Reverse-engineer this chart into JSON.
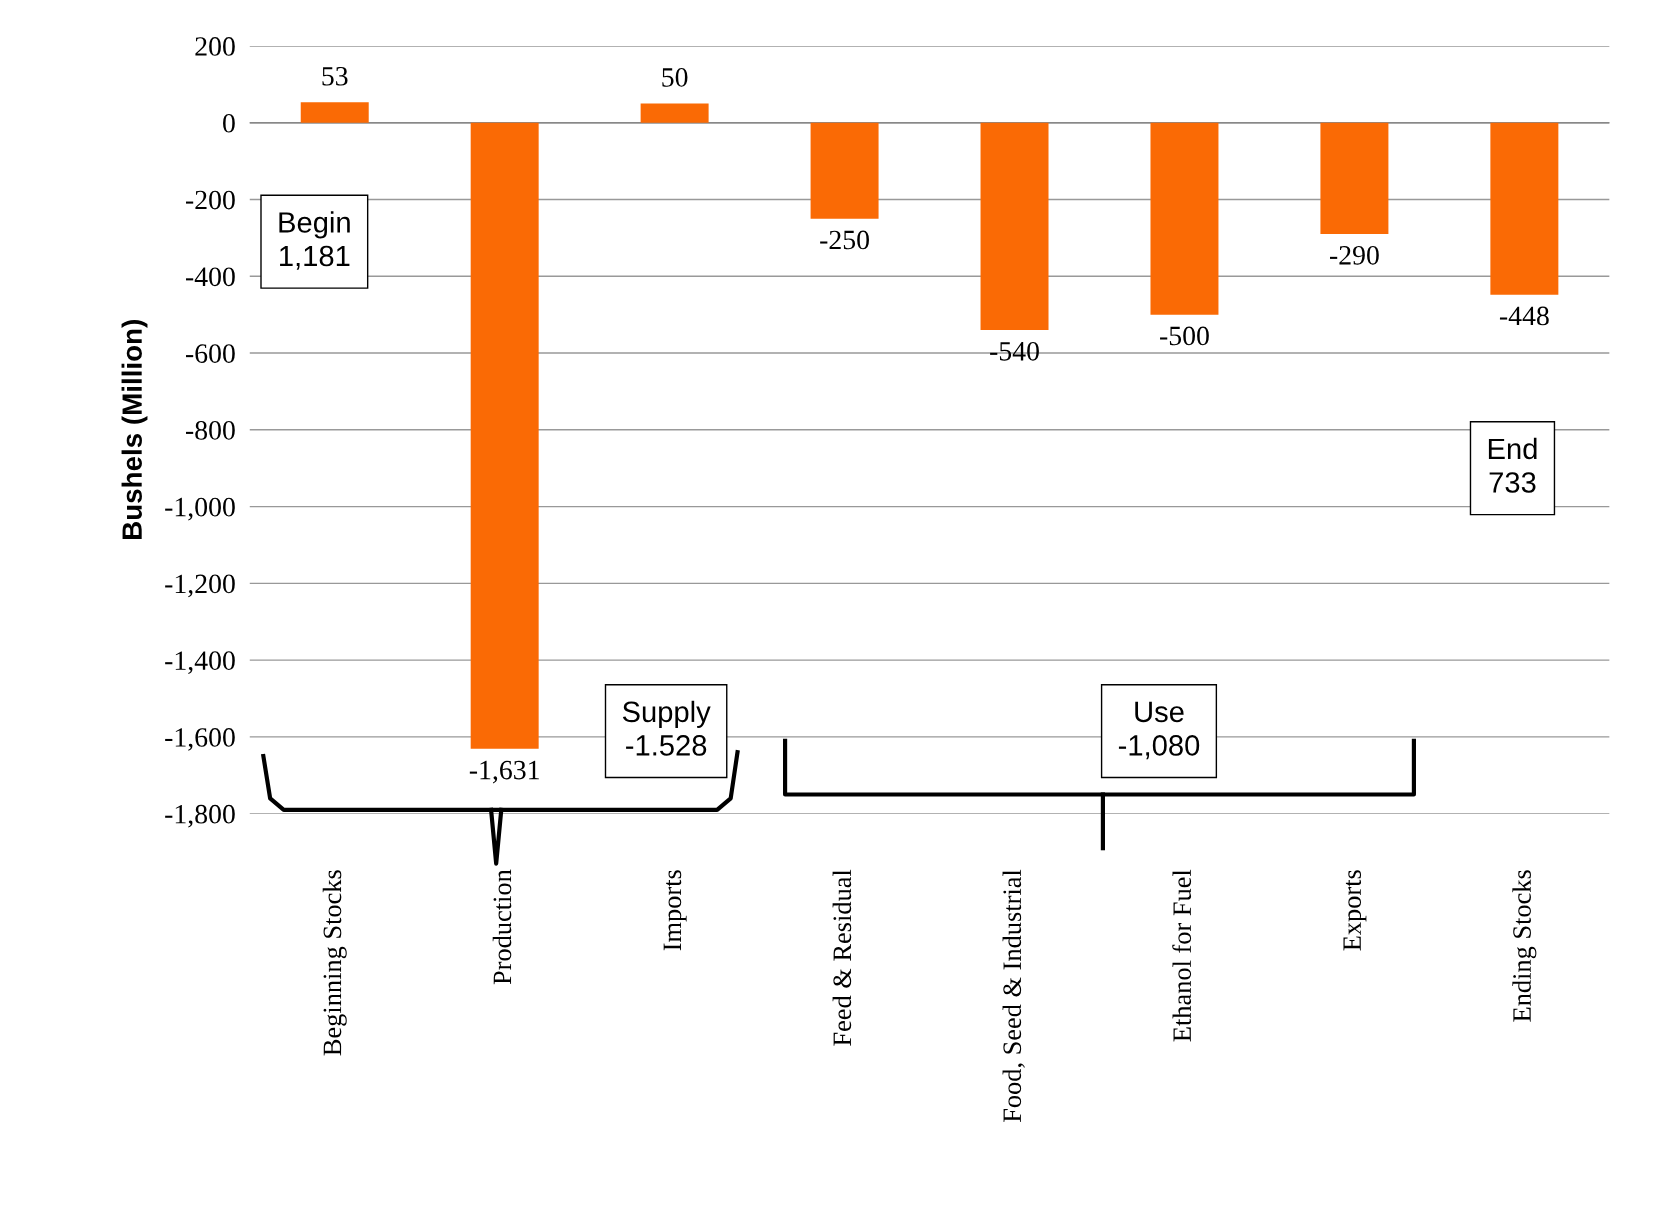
{
  "chart_data": {
    "type": "bar",
    "ylabel": "Bushels (Million)",
    "categories": [
      "Beginning Stocks",
      "Production",
      "Imports",
      "Feed & Residual",
      "Food, Seed & Industrial",
      "Ethanol for Fuel",
      "Exports",
      "Ending Stocks"
    ],
    "values": [
      53,
      -1631,
      50,
      -250,
      -540,
      -500,
      -290,
      -448
    ],
    "value_labels": [
      "53",
      "-1,631",
      "50",
      "-250",
      "-540",
      "-500",
      "-290",
      "-448"
    ],
    "color": "#fa6a05",
    "ylim": [
      -1800,
      200
    ],
    "yticks": [
      {
        "value": -1800,
        "label": "-1,800"
      },
      {
        "value": -1600,
        "label": "-1,600"
      },
      {
        "value": -1400,
        "label": "-1,400"
      },
      {
        "value": -1200,
        "label": "-1,200"
      },
      {
        "value": -1000,
        "label": "-1,000"
      },
      -800,
      -600,
      -400,
      -200,
      0,
      200
    ],
    "grid": "y",
    "legend": false,
    "annotations": [
      "Begin\n1,181",
      "Supply\n-1.528",
      "Use\n-1,080",
      "End\n733"
    ]
  }
}
